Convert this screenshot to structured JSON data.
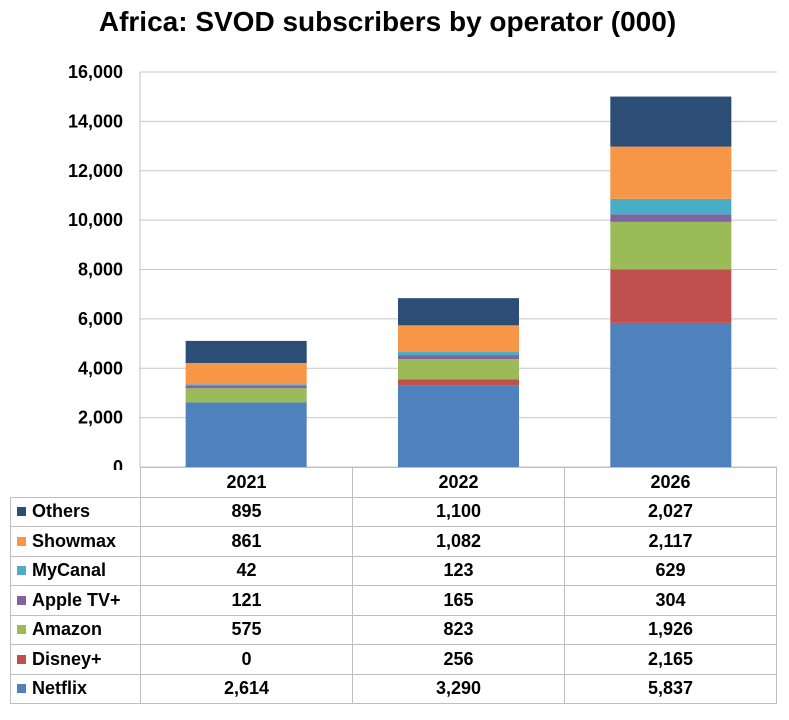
{
  "chart_data": {
    "type": "stacked-bar",
    "title": "Africa: SVOD subscribers by operator (000)",
    "categories": [
      "2021",
      "2022",
      "2026"
    ],
    "ylim": [
      0,
      16000
    ],
    "yticks": [
      "0",
      "2,000",
      "4,000",
      "6,000",
      "8,000",
      "10,000",
      "12,000",
      "14,000",
      "16,000"
    ],
    "ytick_values": [
      0,
      2000,
      4000,
      6000,
      8000,
      10000,
      12000,
      14000,
      16000
    ],
    "grid": true,
    "series": [
      {
        "name": "Netflix",
        "color": "#4f81bd",
        "values": [
          2614,
          3290,
          5837
        ],
        "labels": [
          "2,614",
          "3,290",
          "5,837"
        ]
      },
      {
        "name": "Disney+",
        "color": "#c0504d",
        "values": [
          0,
          256,
          2165
        ],
        "labels": [
          "0",
          "256",
          "2,165"
        ]
      },
      {
        "name": "Amazon",
        "color": "#9bbb59",
        "values": [
          575,
          823,
          1926
        ],
        "labels": [
          "575",
          "823",
          "1,926"
        ]
      },
      {
        "name": "Apple TV+",
        "color": "#8064a2",
        "values": [
          121,
          165,
          304
        ],
        "labels": [
          "121",
          "165",
          "304"
        ]
      },
      {
        "name": "MyCanal",
        "color": "#4bacc6",
        "values": [
          42,
          123,
          629
        ],
        "labels": [
          "42",
          "123",
          "629"
        ]
      },
      {
        "name": "Showmax",
        "color": "#f79646",
        "values": [
          861,
          1082,
          2117
        ],
        "labels": [
          "861",
          "1,082",
          "2,117"
        ]
      },
      {
        "name": "Others",
        "color": "#2c4d75",
        "values": [
          895,
          1100,
          2027
        ],
        "labels": [
          "895",
          "1,100",
          "2,027"
        ]
      }
    ]
  }
}
